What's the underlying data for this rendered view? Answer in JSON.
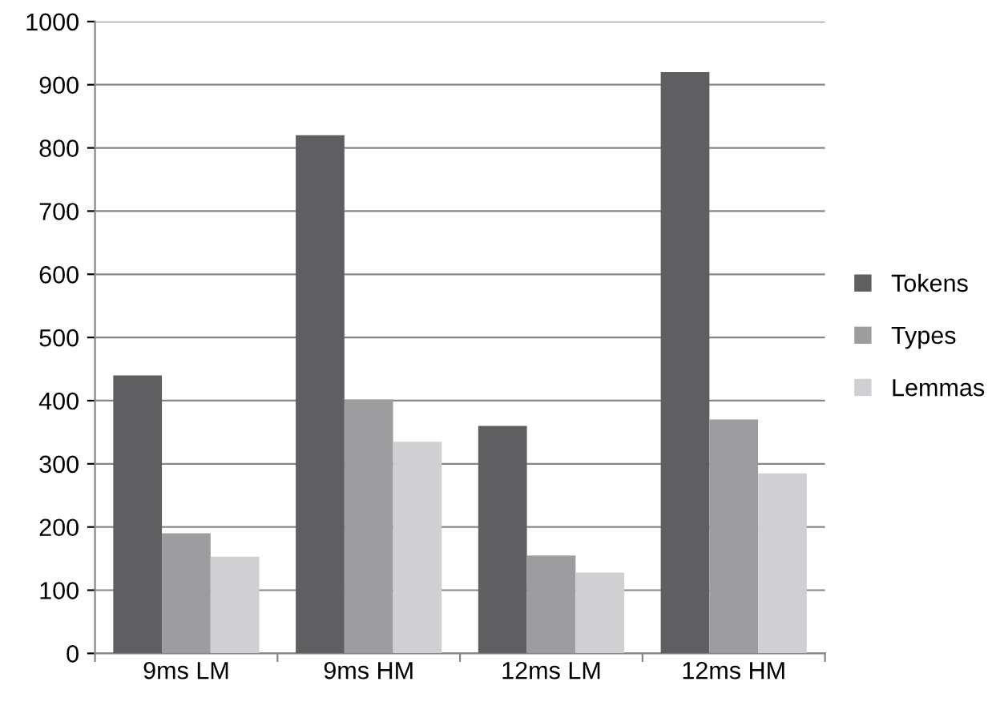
{
  "chart_data": {
    "type": "bar",
    "categories": [
      "9ms LM",
      "9ms HM",
      "12ms LM",
      "12ms HM"
    ],
    "series": [
      {
        "name": "Tokens",
        "color": "#5f5f61",
        "values": [
          440,
          820,
          360,
          920
        ]
      },
      {
        "name": "Types",
        "color": "#9d9da0",
        "values": [
          190,
          402,
          155,
          370
        ]
      },
      {
        "name": "Lemmas",
        "color": "#d0d0d2",
        "values": [
          153,
          335,
          128,
          285
        ]
      }
    ],
    "ylim": [
      0,
      1000
    ],
    "yticks": [
      0,
      100,
      200,
      300,
      400,
      500,
      600,
      700,
      800,
      900,
      1000
    ],
    "grid": "y",
    "legend": "right"
  }
}
